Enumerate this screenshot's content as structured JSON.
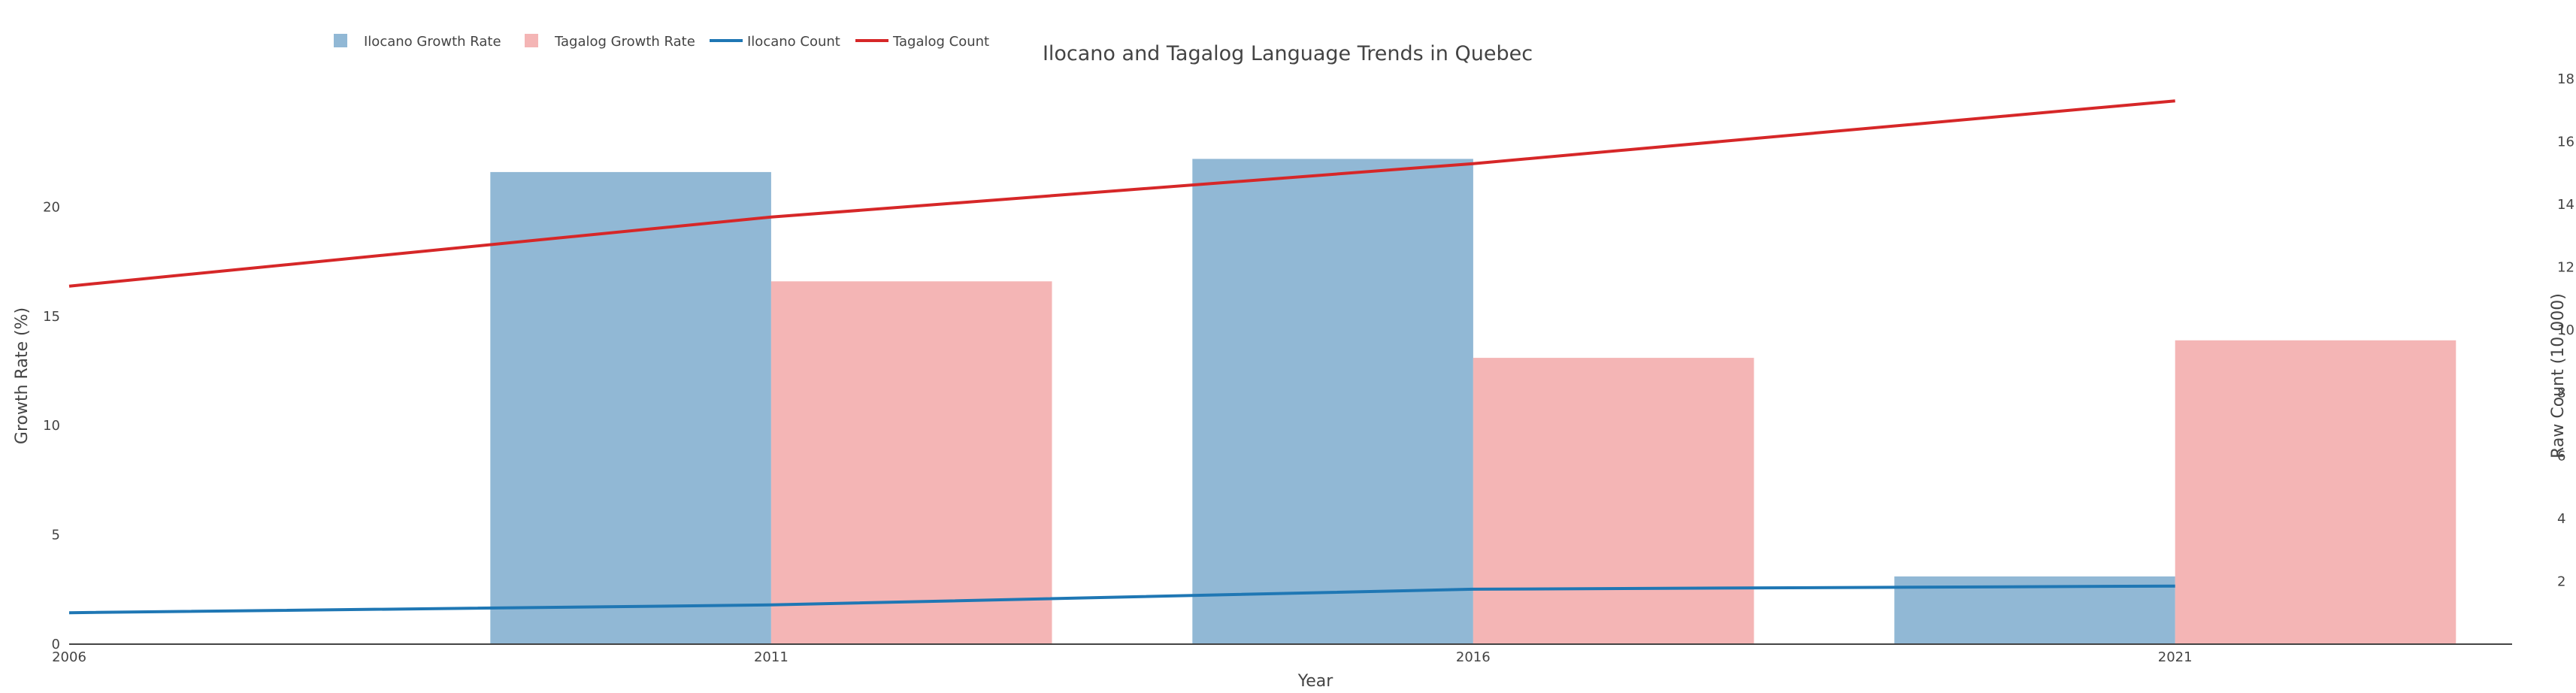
{
  "chart_data": {
    "type": "bar",
    "title": "Ilocano and Tagalog Language Trends in Quebec",
    "xlabel": "Year",
    "ylabel": "Growth Rate (%)",
    "y2label": "Raw Count (10,000)",
    "x_ticks": [
      "2006",
      "2011",
      "2016",
      "2021"
    ],
    "y_ticks": [
      "0",
      "5",
      "10",
      "15",
      "20"
    ],
    "y2_ticks": [
      "2",
      "4",
      "6",
      "8",
      "10",
      "12",
      "14",
      "16",
      "18"
    ],
    "ylim": [
      0,
      25
    ],
    "y2lim": [
      0,
      17.4
    ],
    "xlim": [
      2006,
      2023.4
    ],
    "bar_series": [
      {
        "name": "Ilocano Growth Rate",
        "x": [
          2011,
          2016,
          2021
        ],
        "values": [
          21.6,
          22.2,
          3.1
        ],
        "color": "#91b8d5"
      },
      {
        "name": "Tagalog Growth Rate",
        "x": [
          2011,
          2016,
          2021
        ],
        "values": [
          16.6,
          13.1,
          13.9
        ],
        "color": "#f4b5b5"
      }
    ],
    "line_series": [
      {
        "name": "Ilocano Count",
        "x": [
          2006,
          2011,
          2016,
          2021
        ],
        "values": [
          1.0,
          1.25,
          1.75,
          1.85
        ],
        "color": "#1f77b4"
      },
      {
        "name": "Tagalog Count",
        "x": [
          2006,
          2011,
          2016,
          2021
        ],
        "values": [
          11.4,
          13.6,
          15.3,
          17.3
        ],
        "color": "#d62728"
      }
    ],
    "legend": [
      "Ilocano Growth Rate",
      "Tagalog Growth Rate",
      "Ilocano Count",
      "Tagalog Count"
    ],
    "legend_position": "top-left",
    "grid": false
  }
}
